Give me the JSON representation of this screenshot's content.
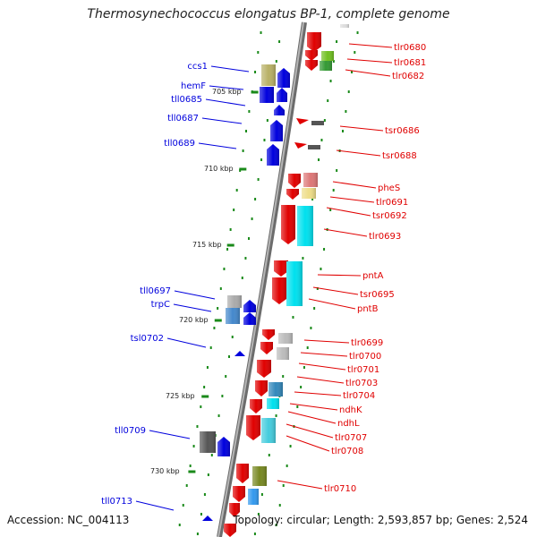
{
  "title": "Thermosynechococcus elongatus BP-1, complete genome",
  "footer": {
    "accession": "Accession: NC_004113",
    "topology": "Topology: circular; Length: 2,593,857 bp; Genes: 2,524"
  },
  "colors": {
    "forward": "#e00000",
    "reverse": "#0000dd",
    "backbone": "#8a8a8a",
    "tick": "#1a8a1a"
  },
  "kbp_labels": [
    "705 kbp",
    "710 kbp",
    "715 kbp",
    "720 kbp",
    "725 kbp",
    "730 kbp"
  ],
  "forward_genes": [
    "tlr0680",
    "tlr0681",
    "tlr0682",
    "tsr0686",
    "tsr0688",
    "pheS",
    "tlr0691",
    "tsr0692",
    "tlr0693",
    "pntA",
    "tsr0695",
    "pntB",
    "tlr0699",
    "tlr0700",
    "tlr0701",
    "tlr0703",
    "tlr0704",
    "ndhK",
    "ndhL",
    "tlr0707",
    "tlr0708",
    "tlr0710"
  ],
  "reverse_genes": [
    "ccs1",
    "hemF",
    "tll0685",
    "tll0687",
    "tll0689",
    "tll0697",
    "trpC",
    "tsl0702",
    "tll0709",
    "tll0713"
  ]
}
